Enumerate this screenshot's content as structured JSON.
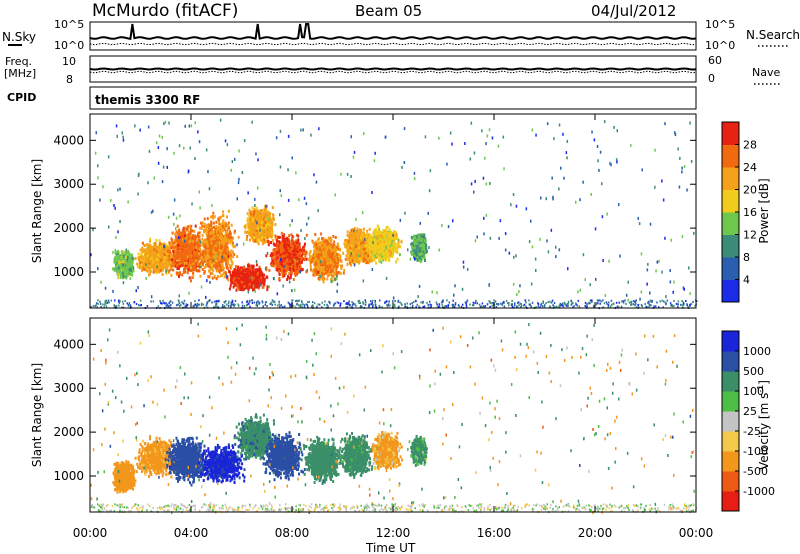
{
  "header": {
    "station": "McMurdo (fitACF)",
    "beam": "Beam 05",
    "date": "04/Jul/2012"
  },
  "noise_panel": {
    "left_label": "N.Sky",
    "right_label": "N.Search",
    "left_ticks": [
      "10^5",
      "10^0"
    ],
    "right_ticks": [
      "10^5",
      "10^0"
    ]
  },
  "freq_panel": {
    "left_label_top": "Freq.",
    "left_label_bottom": "[MHz]",
    "right_label": "Nave",
    "left_ticks": [
      "10",
      "8"
    ],
    "right_ticks": [
      "60",
      "0"
    ]
  },
  "cpid_panel": {
    "label": "CPID",
    "text": "themis 3300 RF"
  },
  "power_panel": {
    "ylabel": "Slant Range [km]",
    "yticks": [
      1000,
      2000,
      3000,
      4000
    ],
    "colorbar_label": "Power [dB]",
    "colorbar_ticks": [
      "4",
      "8",
      "12",
      "16",
      "20",
      "24",
      "28"
    ],
    "colorbar_colors": [
      "#1b2be8",
      "#2a5fb0",
      "#3c8a78",
      "#6fc84e",
      "#f2cc1c",
      "#f4a21a",
      "#f26a10",
      "#e82212"
    ]
  },
  "velocity_panel": {
    "ylabel": "Slant Range [km]",
    "yticks": [
      1000,
      2000,
      3000,
      4000
    ],
    "colorbar_label": "Velocity [m s",
    "colorbar_label_sup": "-1",
    "colorbar_label_end": "]",
    "colorbar_ticks": [
      "-1000",
      "-500",
      "-100",
      "-25",
      "25",
      "100",
      "500",
      "1000"
    ],
    "colorbar_colors": [
      "#e61e14",
      "#ec5a14",
      "#f2961c",
      "#f4c84a",
      "#c4c4c4",
      "#4dbe46",
      "#3a8f68",
      "#2a4fa4",
      "#1a24d8"
    ]
  },
  "xaxis": {
    "label": "Time UT",
    "ticks": [
      "00:00",
      "04:00",
      "08:00",
      "12:00",
      "16:00",
      "20:00",
      "00:00"
    ]
  },
  "chart_data": [
    {
      "type": "heatmap",
      "name": "power",
      "xlabel": "Time UT",
      "ylabel": "Slant Range [km]",
      "xlim": [
        0,
        24
      ],
      "ylim": [
        180,
        4600
      ],
      "colorbar": "Power [dB]",
      "blobs": [
        {
          "t": 1.3,
          "range": 1200,
          "dt": 0.45,
          "dr": 350,
          "value": 14
        },
        {
          "t": 2.6,
          "range": 1350,
          "dt": 0.9,
          "dr": 450,
          "value": 22
        },
        {
          "t": 3.8,
          "range": 1500,
          "dt": 0.8,
          "dr": 700,
          "value": 26
        },
        {
          "t": 5.0,
          "range": 1600,
          "dt": 0.9,
          "dr": 900,
          "value": 24
        },
        {
          "t": 6.2,
          "range": 900,
          "dt": 0.9,
          "dr": 350,
          "value": 30
        },
        {
          "t": 6.7,
          "range": 2100,
          "dt": 0.7,
          "dr": 500,
          "value": 22
        },
        {
          "t": 7.8,
          "range": 1400,
          "dt": 0.9,
          "dr": 600,
          "value": 28
        },
        {
          "t": 9.3,
          "range": 1350,
          "dt": 0.8,
          "dr": 600,
          "value": 24
        },
        {
          "t": 10.6,
          "range": 1600,
          "dt": 0.7,
          "dr": 500,
          "value": 22
        },
        {
          "t": 11.6,
          "range": 1650,
          "dt": 0.8,
          "dr": 450,
          "value": 18
        },
        {
          "t": 13.0,
          "range": 1600,
          "dt": 0.35,
          "dr": 350,
          "value": 12
        }
      ]
    },
    {
      "type": "heatmap",
      "name": "velocity",
      "xlabel": "Time UT",
      "ylabel": "Slant Range [km]",
      "xlim": [
        0,
        24
      ],
      "ylim": [
        180,
        4600
      ],
      "colorbar": "Velocity [m s-1]",
      "blobs": [
        {
          "t": 1.3,
          "range": 1000,
          "dt": 0.5,
          "dr": 400,
          "value": -300
        },
        {
          "t": 2.6,
          "range": 1450,
          "dt": 0.9,
          "dr": 500,
          "value": -200
        },
        {
          "t": 3.8,
          "range": 1400,
          "dt": 0.9,
          "dr": 600,
          "value": 800
        },
        {
          "t": 5.2,
          "range": 1300,
          "dt": 1.0,
          "dr": 500,
          "value": 1100
        },
        {
          "t": 6.5,
          "range": 1900,
          "dt": 0.9,
          "dr": 600,
          "value": 400
        },
        {
          "t": 7.6,
          "range": 1500,
          "dt": 0.9,
          "dr": 600,
          "value": 700
        },
        {
          "t": 9.2,
          "range": 1400,
          "dt": 0.9,
          "dr": 600,
          "value": 300
        },
        {
          "t": 10.5,
          "range": 1500,
          "dt": 0.7,
          "dr": 550,
          "value": 250
        },
        {
          "t": 11.7,
          "range": 1600,
          "dt": 0.7,
          "dr": 500,
          "value": -150
        },
        {
          "t": 13.0,
          "range": 1600,
          "dt": 0.35,
          "dr": 350,
          "value": 150
        }
      ]
    }
  ]
}
